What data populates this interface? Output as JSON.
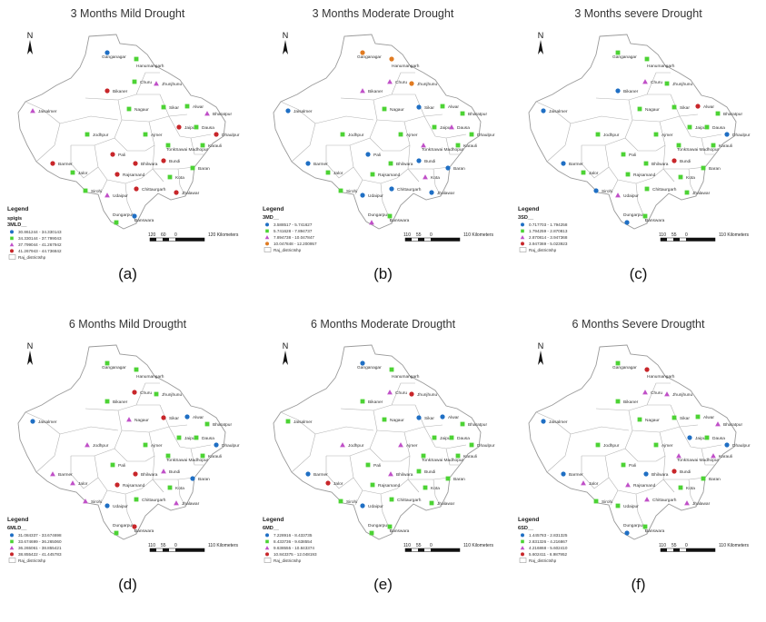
{
  "panels": [
    {
      "title": "3 Months Mild Drought",
      "caption": "(a)",
      "legend": {
        "heading": "Legend",
        "subheading": "spigis",
        "field": "3MLD__",
        "classes": [
          {
            "label": "30.861244 - 34.330143",
            "symbol": "circle",
            "color": "#1f6fc4"
          },
          {
            "label": "34.330144 - 37.799043",
            "symbol": "square",
            "color": "#4cd334"
          },
          {
            "label": "37.799044 - 41.267942",
            "symbol": "triangle",
            "color": "#c050c8"
          },
          {
            "label": "41.267943 - 44.736842",
            "symbol": "circle",
            "color": "#c8262a"
          }
        ],
        "boundary": "Raj_districtshp"
      },
      "scale": {
        "ticks": [
          "120",
          "60",
          "0",
          "120 Kilometers"
        ]
      },
      "districts": [
        {
          "name": "Ganganagar",
          "c": 0
        },
        {
          "name": "Hanumangarh",
          "c": 1
        },
        {
          "name": "Bikaner",
          "c": 3
        },
        {
          "name": "Churu",
          "c": 1
        },
        {
          "name": "Jhunjhunu",
          "c": 2
        },
        {
          "name": "Sikar",
          "c": 1
        },
        {
          "name": "Alwar",
          "c": 1
        },
        {
          "name": "Bharatpur",
          "c": 2
        },
        {
          "name": "Jaisalmer",
          "c": 2
        },
        {
          "name": "Nagaur",
          "c": 1
        },
        {
          "name": "Jaipur",
          "c": 3
        },
        {
          "name": "Dausa",
          "c": 1
        },
        {
          "name": "Dhaulpur",
          "c": 3
        },
        {
          "name": "Jodhpur",
          "c": 1
        },
        {
          "name": "Karauli",
          "c": 1
        },
        {
          "name": "Ajmer",
          "c": 1
        },
        {
          "name": "TonkSawai Madhopur",
          "c": 1
        },
        {
          "name": "Barmer",
          "c": 3
        },
        {
          "name": "Pali",
          "c": 3
        },
        {
          "name": "Bhilwara",
          "c": 3
        },
        {
          "name": "Bundi",
          "c": 3
        },
        {
          "name": "Jalor",
          "c": 1
        },
        {
          "name": "Rajsamand",
          "c": 3
        },
        {
          "name": "Kota",
          "c": 1
        },
        {
          "name": "Baran",
          "c": 1
        },
        {
          "name": "Sirohi",
          "c": 1
        },
        {
          "name": "Chittaurgarh",
          "c": 3
        },
        {
          "name": "Jhalawar",
          "c": 3
        },
        {
          "name": "Udaipur",
          "c": 2
        },
        {
          "name": "Dungarpur",
          "c": 1
        },
        {
          "name": "Banswara",
          "c": 0
        }
      ]
    },
    {
      "title": "3 Months Moderate Drought",
      "caption": "(b)",
      "legend": {
        "heading": "Legend",
        "subheading": "",
        "field": "3MD__",
        "classes": [
          {
            "label": "3.588517 - 5.741627",
            "symbol": "circle",
            "color": "#1f6fc4"
          },
          {
            "label": "5.741628 - 7.894737",
            "symbol": "square",
            "color": "#4cd334"
          },
          {
            "label": "7.894738 - 10.047847",
            "symbol": "triangle",
            "color": "#c050c8"
          },
          {
            "label": "10.047848 - 12.200957",
            "symbol": "circle",
            "color": "#e07b22"
          }
        ],
        "boundary": "Raj_districtshp"
      },
      "scale": {
        "ticks": [
          "110",
          "55",
          "0",
          "110 Kilometers"
        ]
      },
      "districts": [
        {
          "name": "Ganganagar",
          "c": 3
        },
        {
          "name": "Hanumangarh",
          "c": 3
        },
        {
          "name": "Bikaner",
          "c": 2
        },
        {
          "name": "Churu",
          "c": 2
        },
        {
          "name": "Jhunjhunu",
          "c": 3
        },
        {
          "name": "Sikar",
          "c": 0
        },
        {
          "name": "Alwar",
          "c": 1
        },
        {
          "name": "Bharatpur",
          "c": 1
        },
        {
          "name": "Jaisalmer",
          "c": 0
        },
        {
          "name": "Nagaur",
          "c": 1
        },
        {
          "name": "Jaipur",
          "c": 1
        },
        {
          "name": "Dausa",
          "c": 2
        },
        {
          "name": "Dhaulpur",
          "c": 1
        },
        {
          "name": "Jodhpur",
          "c": 1
        },
        {
          "name": "Karauli",
          "c": 1
        },
        {
          "name": "Ajmer",
          "c": 1
        },
        {
          "name": "TonkSawai Madhopur",
          "c": 2
        },
        {
          "name": "Barmer",
          "c": 0
        },
        {
          "name": "Pali",
          "c": 0
        },
        {
          "name": "Bhilwara",
          "c": 1
        },
        {
          "name": "Bundi",
          "c": 0
        },
        {
          "name": "Jalor",
          "c": 1
        },
        {
          "name": "Rajsamand",
          "c": 1
        },
        {
          "name": "Kota",
          "c": 2
        },
        {
          "name": "Baran",
          "c": 0
        },
        {
          "name": "Sirohi",
          "c": 1
        },
        {
          "name": "Chittaurgarh",
          "c": 0
        },
        {
          "name": "Jhalawar",
          "c": 0
        },
        {
          "name": "Udaipur",
          "c": 0
        },
        {
          "name": "Dungarpur",
          "c": 2
        },
        {
          "name": "Banswara",
          "c": 1
        }
      ]
    },
    {
      "title": "3 Months severe Drought",
      "caption": "(c)",
      "legend": {
        "heading": "Legend",
        "subheading": "",
        "field": "3SD__",
        "classes": [
          {
            "label": "0.717703 - 1.794258",
            "symbol": "circle",
            "color": "#1f6fc4"
          },
          {
            "label": "1.794259 - 2.870813",
            "symbol": "square",
            "color": "#4cd334"
          },
          {
            "label": "2.870814 - 3.947368",
            "symbol": "triangle",
            "color": "#c050c8"
          },
          {
            "label": "3.947369 - 5.023923",
            "symbol": "circle",
            "color": "#c8262a"
          }
        ],
        "boundary": "Raj_districtshp"
      },
      "scale": {
        "ticks": [
          "110",
          "55",
          "0",
          "110 Kilometers"
        ]
      },
      "districts": [
        {
          "name": "Ganganagar",
          "c": 1
        },
        {
          "name": "Hanumangarh",
          "c": 1
        },
        {
          "name": "Bikaner",
          "c": 0
        },
        {
          "name": "Churu",
          "c": 2
        },
        {
          "name": "Jhunjhunu",
          "c": 1
        },
        {
          "name": "Sikar",
          "c": 1
        },
        {
          "name": "Alwar",
          "c": 3
        },
        {
          "name": "Bharatpur",
          "c": 1
        },
        {
          "name": "Jaisalmer",
          "c": 0
        },
        {
          "name": "Nagaur",
          "c": 1
        },
        {
          "name": "Jaipur",
          "c": 1
        },
        {
          "name": "Dausa",
          "c": 1
        },
        {
          "name": "Dhaulpur",
          "c": 0
        },
        {
          "name": "Jodhpur",
          "c": 1
        },
        {
          "name": "Karauli",
          "c": 1
        },
        {
          "name": "Ajmer",
          "c": 1
        },
        {
          "name": "TonkSawai Madhopur",
          "c": 1
        },
        {
          "name": "Barmer",
          "c": 0
        },
        {
          "name": "Pali",
          "c": 1
        },
        {
          "name": "Bhilwara",
          "c": 1
        },
        {
          "name": "Bundi",
          "c": 3
        },
        {
          "name": "Jalor",
          "c": 1
        },
        {
          "name": "Rajsamand",
          "c": 1
        },
        {
          "name": "Kota",
          "c": 1
        },
        {
          "name": "Baran",
          "c": 1
        },
        {
          "name": "Sirohi",
          "c": 0
        },
        {
          "name": "Chittaurgarh",
          "c": 1
        },
        {
          "name": "Jhalawar",
          "c": 1
        },
        {
          "name": "Udaipur",
          "c": 2
        },
        {
          "name": "Dungarpur",
          "c": 0
        },
        {
          "name": "Banswara",
          "c": 1
        }
      ]
    },
    {
      "title": "6 Months Mild Drougtht",
      "caption": "(d)",
      "legend": {
        "heading": "Legend",
        "subheading": "",
        "field": "6MLD__",
        "classes": [
          {
            "label": "31.084337 - 33.674698",
            "symbol": "circle",
            "color": "#1f6fc4"
          },
          {
            "label": "33.674699 - 36.265060",
            "symbol": "square",
            "color": "#4cd334"
          },
          {
            "label": "36.265061 - 38.855421",
            "symbol": "triangle",
            "color": "#c050c8"
          },
          {
            "label": "38.855422 - 41.445783",
            "symbol": "circle",
            "color": "#c8262a"
          }
        ],
        "boundary": "Raj_districtshp"
      },
      "scale": {
        "ticks": [
          "110",
          "55",
          "0",
          "110 Kilometers"
        ]
      },
      "districts": [
        {
          "name": "Ganganagar",
          "c": 1
        },
        {
          "name": "Hanumangarh",
          "c": 1
        },
        {
          "name": "Bikaner",
          "c": 1
        },
        {
          "name": "Churu",
          "c": 3
        },
        {
          "name": "Jhunjhunu",
          "c": 1
        },
        {
          "name": "Sikar",
          "c": 3
        },
        {
          "name": "Alwar",
          "c": 0
        },
        {
          "name": "Bharatpur",
          "c": 1
        },
        {
          "name": "Jaisalmer",
          "c": 0
        },
        {
          "name": "Nagaur",
          "c": 2
        },
        {
          "name": "Jaipur",
          "c": 1
        },
        {
          "name": "Dausa",
          "c": 1
        },
        {
          "name": "Dhaulpur",
          "c": 0
        },
        {
          "name": "Jodhpur",
          "c": 2
        },
        {
          "name": "Karauli",
          "c": 1
        },
        {
          "name": "Ajmer",
          "c": 1
        },
        {
          "name": "TonkSawai Madhopur",
          "c": 1
        },
        {
          "name": "Barmer",
          "c": 2
        },
        {
          "name": "Pali",
          "c": 1
        },
        {
          "name": "Bhilwara",
          "c": 3
        },
        {
          "name": "Bundi",
          "c": 2
        },
        {
          "name": "Jalor",
          "c": 2
        },
        {
          "name": "Rajsamand",
          "c": 3
        },
        {
          "name": "Kota",
          "c": 1
        },
        {
          "name": "Baran",
          "c": 0
        },
        {
          "name": "Sirohi",
          "c": 2
        },
        {
          "name": "Chittaurgarh",
          "c": 1
        },
        {
          "name": "Jhalawar",
          "c": 2
        },
        {
          "name": "Udaipur",
          "c": 0
        },
        {
          "name": "Dungarpur",
          "c": 1
        },
        {
          "name": "Banswara",
          "c": 3
        }
      ]
    },
    {
      "title": "6 Months Moderate Drougtht",
      "caption": "(e)",
      "legend": {
        "heading": "Legend",
        "subheading": "",
        "field": "6MD__",
        "classes": [
          {
            "label": "7.228916 - 8.433735",
            "symbol": "circle",
            "color": "#1f6fc4"
          },
          {
            "label": "8.433736 - 9.638554",
            "symbol": "square",
            "color": "#4cd334"
          },
          {
            "label": "9.638555 - 10.843374",
            "symbol": "triangle",
            "color": "#c050c8"
          },
          {
            "label": "10.843375 - 12.048193",
            "symbol": "circle",
            "color": "#c8262a"
          }
        ],
        "boundary": "Raj_districtshp"
      },
      "scale": {
        "ticks": [
          "110",
          "55",
          "0",
          "110 Kilometers"
        ]
      },
      "districts": [
        {
          "name": "Ganganagar",
          "c": 0
        },
        {
          "name": "Hanumangarh",
          "c": 1
        },
        {
          "name": "Bikaner",
          "c": 1
        },
        {
          "name": "Churu",
          "c": 2
        },
        {
          "name": "Jhunjhunu",
          "c": 3
        },
        {
          "name": "Sikar",
          "c": 0
        },
        {
          "name": "Alwar",
          "c": 0
        },
        {
          "name": "Bharatpur",
          "c": 1
        },
        {
          "name": "Jaisalmer",
          "c": 1
        },
        {
          "name": "Nagaur",
          "c": 1
        },
        {
          "name": "Jaipur",
          "c": 1
        },
        {
          "name": "Dausa",
          "c": 1
        },
        {
          "name": "Dhaulpur",
          "c": 1
        },
        {
          "name": "Jodhpur",
          "c": 2
        },
        {
          "name": "Karauli",
          "c": 1
        },
        {
          "name": "Ajmer",
          "c": 2
        },
        {
          "name": "TonkSawai Madhopur",
          "c": 1
        },
        {
          "name": "Barmer",
          "c": 0
        },
        {
          "name": "Pali",
          "c": 1
        },
        {
          "name": "Bhilwara",
          "c": 2
        },
        {
          "name": "Bundi",
          "c": 1
        },
        {
          "name": "Jalor",
          "c": 3
        },
        {
          "name": "Rajsamand",
          "c": 1
        },
        {
          "name": "Kota",
          "c": 1
        },
        {
          "name": "Baran",
          "c": 1
        },
        {
          "name": "Sirohi",
          "c": 1
        },
        {
          "name": "Chittaurgarh",
          "c": 1
        },
        {
          "name": "Jhalawar",
          "c": 1
        },
        {
          "name": "Udaipur",
          "c": 0
        },
        {
          "name": "Dungarpur",
          "c": 1
        },
        {
          "name": "Banswara",
          "c": 1
        }
      ]
    },
    {
      "title": "6 Months Severe Drougtht",
      "caption": "(f)",
      "legend": {
        "heading": "Legend",
        "subheading": "",
        "field": "6SD__",
        "classes": [
          {
            "label": "1.445783 - 2.831325",
            "symbol": "circle",
            "color": "#1f6fc4"
          },
          {
            "label": "2.831326 - 4.216867",
            "symbol": "square",
            "color": "#4cd334"
          },
          {
            "label": "4.216868 - 5.602410",
            "symbol": "triangle",
            "color": "#c050c8"
          },
          {
            "label": "5.602411 - 6.987952",
            "symbol": "circle",
            "color": "#c8262a"
          }
        ],
        "boundary": "Raj_districtshp"
      },
      "scale": {
        "ticks": [
          "110",
          "55",
          "0",
          "110 Kilometers"
        ]
      },
      "districts": [
        {
          "name": "Ganganagar",
          "c": 1
        },
        {
          "name": "Hanumangarh",
          "c": 3
        },
        {
          "name": "Bikaner",
          "c": 1
        },
        {
          "name": "Churu",
          "c": 2
        },
        {
          "name": "Jhunjhunu",
          "c": 2
        },
        {
          "name": "Sikar",
          "c": 1
        },
        {
          "name": "Alwar",
          "c": 1
        },
        {
          "name": "Bharatpur",
          "c": 2
        },
        {
          "name": "Jaisalmer",
          "c": 0
        },
        {
          "name": "Nagaur",
          "c": 1
        },
        {
          "name": "Jaipur",
          "c": 0
        },
        {
          "name": "Dausa",
          "c": 1
        },
        {
          "name": "Dhaulpur",
          "c": 0
        },
        {
          "name": "Jodhpur",
          "c": 1
        },
        {
          "name": "Karauli",
          "c": 2
        },
        {
          "name": "Ajmer",
          "c": 1
        },
        {
          "name": "TonkSawai Madhopur",
          "c": 2
        },
        {
          "name": "Barmer",
          "c": 0
        },
        {
          "name": "Pali",
          "c": 1
        },
        {
          "name": "Bhilwara",
          "c": 0
        },
        {
          "name": "Bundi",
          "c": 3
        },
        {
          "name": "Jalor",
          "c": 2
        },
        {
          "name": "Rajsamand",
          "c": 2
        },
        {
          "name": "Kota",
          "c": 1
        },
        {
          "name": "Baran",
          "c": 1
        },
        {
          "name": "Sirohi",
          "c": 1
        },
        {
          "name": "Chittaurgarh",
          "c": 2
        },
        {
          "name": "Jhalawar",
          "c": 2
        },
        {
          "name": "Udaipur",
          "c": 1
        },
        {
          "name": "Dungarpur",
          "c": 0
        },
        {
          "name": "Banswara",
          "c": 1
        }
      ]
    }
  ]
}
